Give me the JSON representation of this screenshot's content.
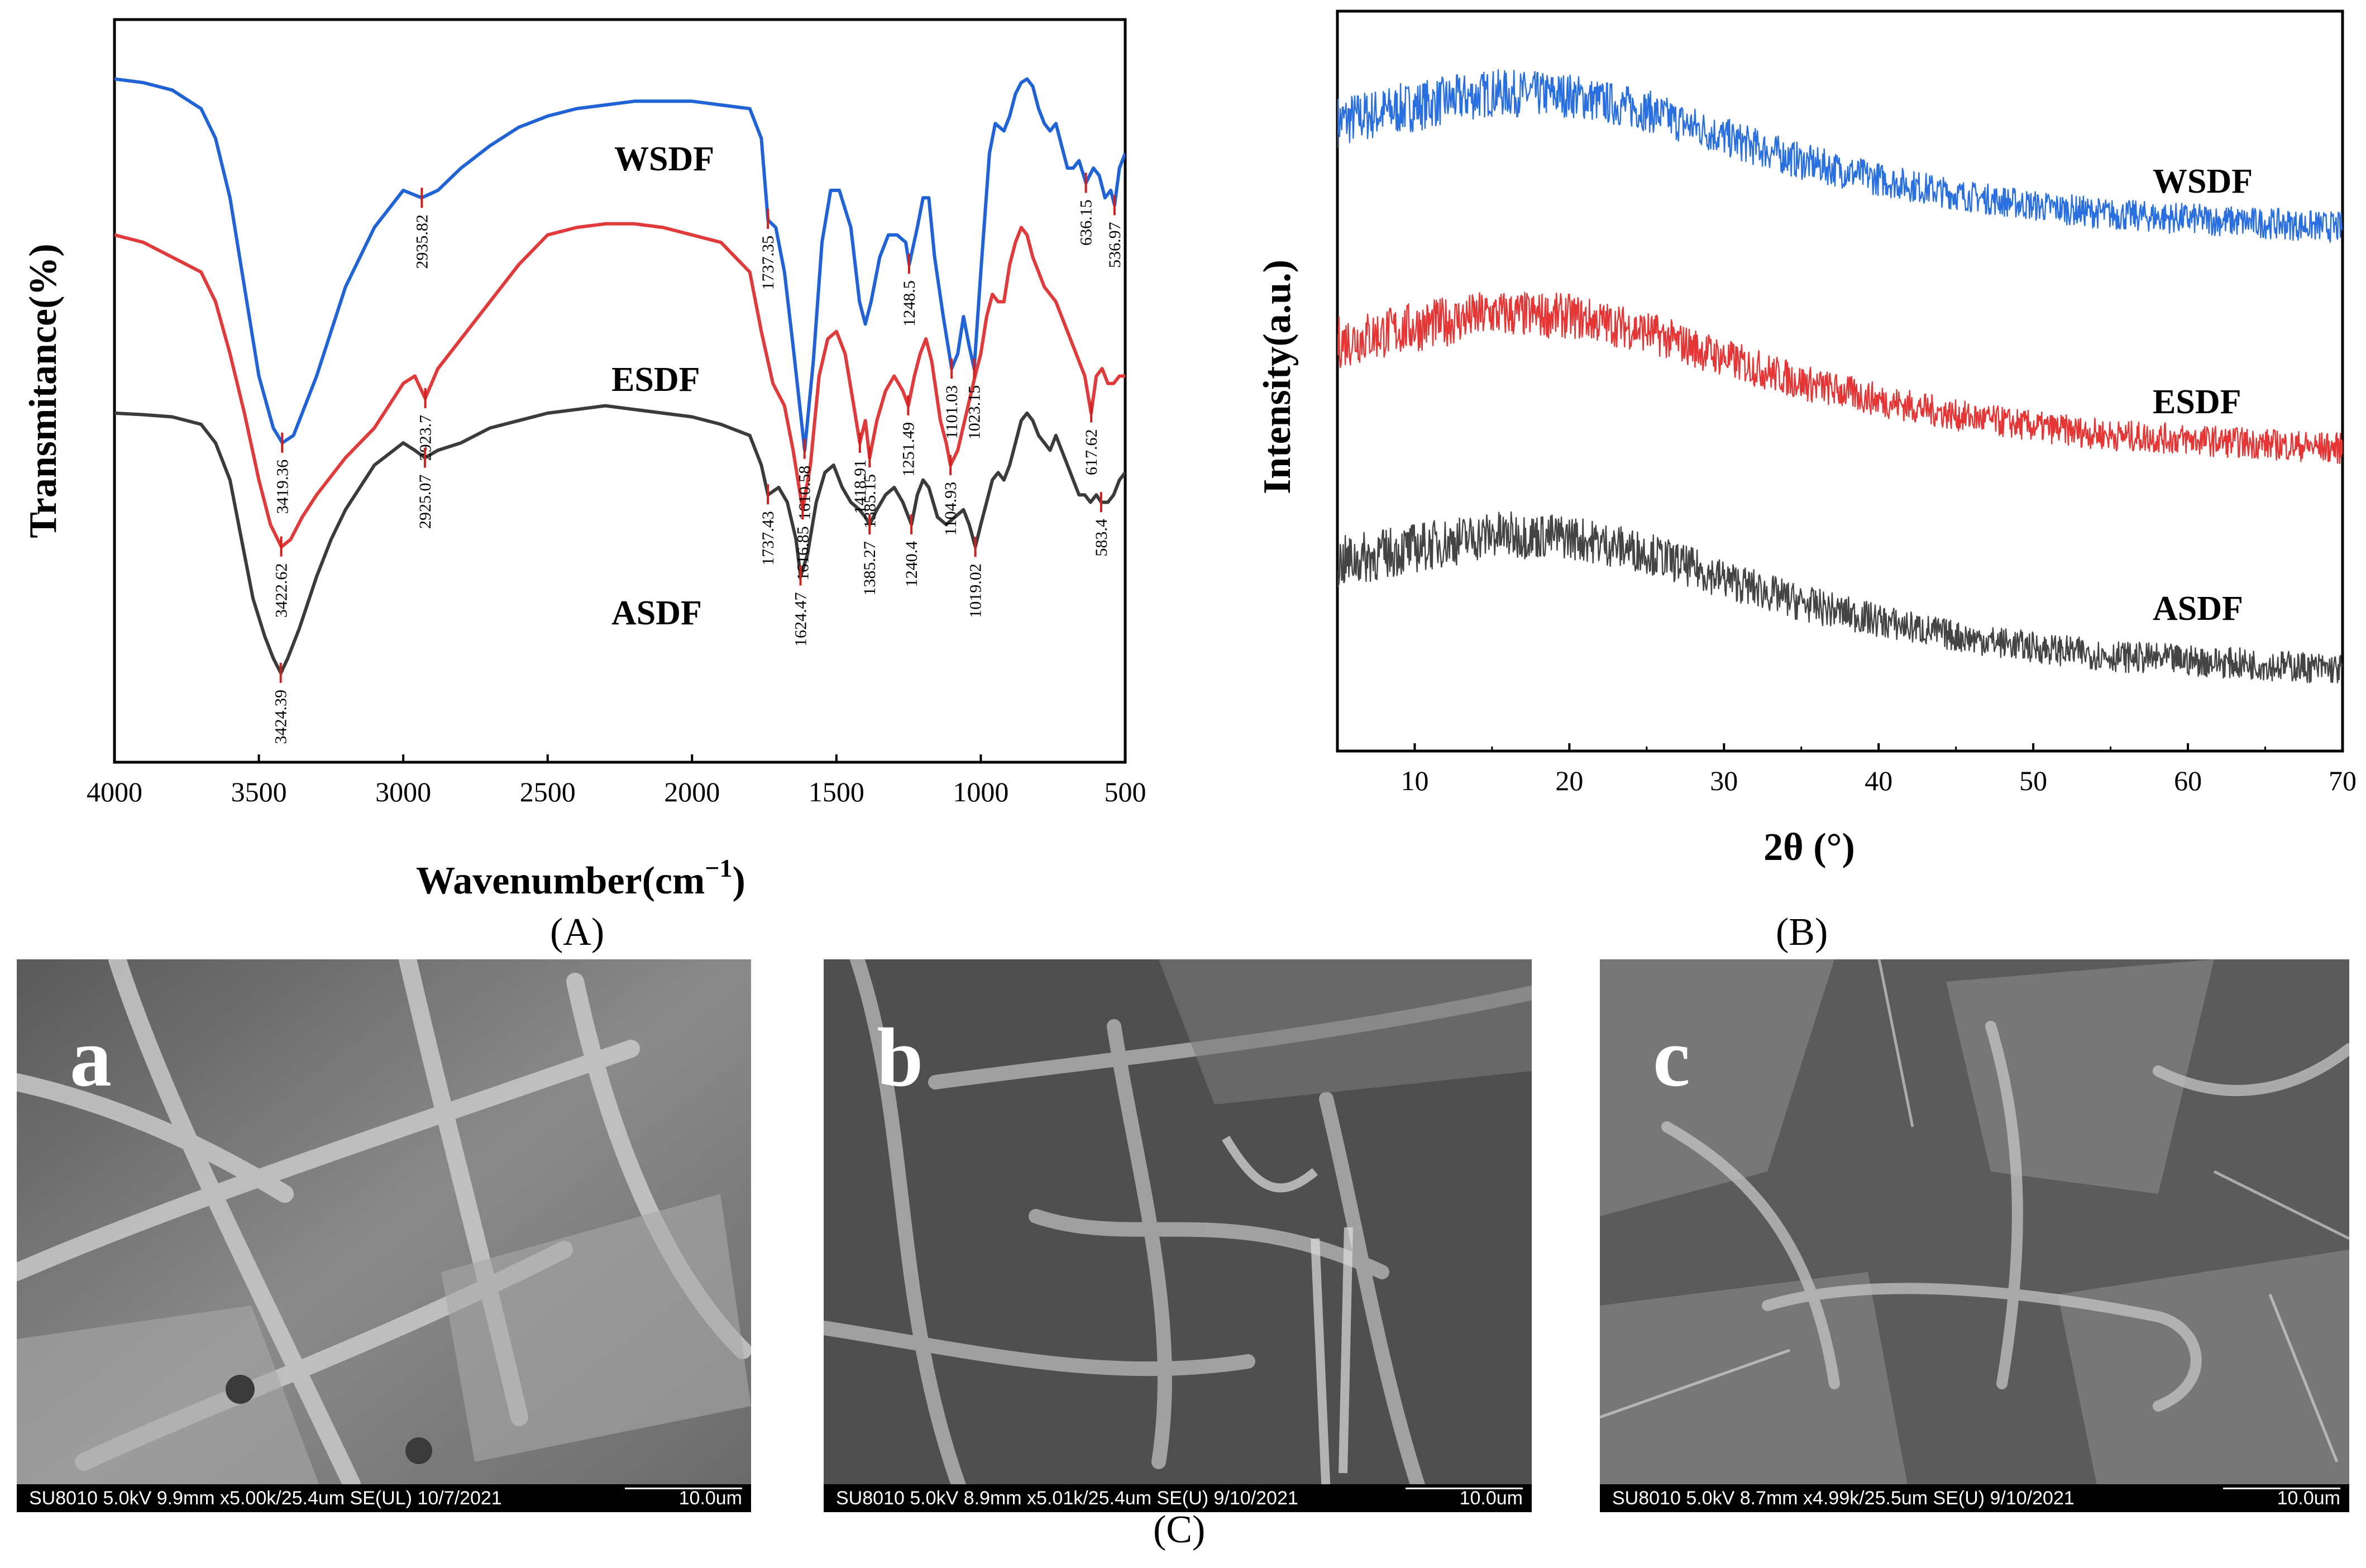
{
  "chart_data": [
    {
      "type": "line",
      "panel": "A",
      "title": "",
      "xlabel": "Wavenumber(cm",
      "xlabel_sup": "−1",
      "xlabel_close": ")",
      "ylabel": "Transmitance(%)",
      "xlim": [
        4000,
        500
      ],
      "x_ticks": [
        "4000",
        "3500",
        "3000",
        "2500",
        "2000",
        "1500",
        "1000",
        "500"
      ],
      "series": [
        {
          "name": "WSDF",
          "color": "#1f63d6",
          "x": [
            4000,
            3900,
            3800,
            3700,
            3650,
            3600,
            3550,
            3500,
            3450,
            3419,
            3380,
            3300,
            3200,
            3100,
            3000,
            2936,
            2880,
            2800,
            2700,
            2600,
            2500,
            2400,
            2300,
            2200,
            2100,
            2000,
            1900,
            1800,
            1760,
            1737,
            1710,
            1680,
            1650,
            1610,
            1580,
            1550,
            1520,
            1490,
            1450,
            1420,
            1400,
            1380,
            1350,
            1320,
            1290,
            1260,
            1248,
            1220,
            1200,
            1180,
            1160,
            1130,
            1101,
            1080,
            1060,
            1040,
            1023,
            1000,
            970,
            950,
            920,
            900,
            880,
            860,
            840,
            820,
            800,
            780,
            760,
            740,
            720,
            700,
            680,
            660,
            636,
            610,
            590,
            570,
            550,
            537,
            520,
            500
          ],
          "y": [
            92,
            91.5,
            90.5,
            88,
            84,
            76,
            64,
            52,
            45,
            43,
            44,
            52,
            64,
            72,
            77,
            76,
            77,
            80,
            83,
            85.5,
            87,
            88,
            88.5,
            89,
            89,
            89,
            88.5,
            88,
            84,
            73,
            72,
            66,
            56,
            42,
            54,
            70,
            77,
            77,
            72,
            62,
            59,
            62,
            68,
            71,
            71,
            70,
            67,
            72,
            76,
            76,
            68,
            60,
            53,
            55,
            60,
            56,
            53,
            66,
            82,
            86,
            85,
            87,
            90,
            91.5,
            92,
            91,
            88,
            86,
            85,
            86,
            83,
            80,
            80,
            81,
            78,
            80,
            79,
            76,
            77,
            75,
            80,
            82
          ]
        },
        {
          "name": "ESDF",
          "color": "#e03a3a",
          "x": [
            4000,
            3900,
            3800,
            3700,
            3650,
            3600,
            3550,
            3500,
            3460,
            3422,
            3390,
            3350,
            3300,
            3200,
            3100,
            3000,
            2960,
            2924,
            2880,
            2800,
            2700,
            2600,
            2500,
            2400,
            2300,
            2200,
            2100,
            2000,
            1950,
            1900,
            1850,
            1800,
            1760,
            1720,
            1680,
            1650,
            1617,
            1590,
            1560,
            1530,
            1500,
            1470,
            1440,
            1419,
            1400,
            1385,
            1360,
            1330,
            1300,
            1270,
            1251,
            1230,
            1210,
            1190,
            1170,
            1140,
            1120,
            1105,
            1080,
            1050,
            1020,
            1000,
            980,
            960,
            940,
            920,
            900,
            880,
            860,
            840,
            820,
            800,
            780,
            760,
            740,
            720,
            700,
            680,
            660,
            640,
            618,
            600,
            580,
            560,
            540,
            520,
            500
          ],
          "y": [
            71,
            70,
            68,
            66,
            62,
            55,
            47,
            38,
            32,
            29,
            30,
            33,
            36,
            41,
            45,
            51,
            52,
            49,
            53,
            57,
            62,
            67,
            71,
            72,
            72.5,
            72.5,
            72,
            71,
            70.5,
            70,
            68,
            66,
            58,
            51,
            48,
            42,
            34,
            40,
            52,
            57,
            58,
            55,
            48,
            43,
            46,
            41,
            46,
            50,
            52,
            50,
            48,
            52,
            55,
            57,
            54,
            46,
            43,
            40,
            42,
            47,
            52,
            55,
            60,
            63,
            62,
            62,
            67,
            70,
            72,
            71,
            68,
            66,
            64,
            63,
            62,
            60,
            58,
            56,
            54,
            52,
            47,
            52,
            53,
            51,
            51,
            52,
            52
          ]
        },
        {
          "name": "ASDF",
          "color": "#3b3b3b",
          "x": [
            4000,
            3900,
            3800,
            3700,
            3650,
            3600,
            3560,
            3520,
            3480,
            3450,
            3424,
            3400,
            3360,
            3300,
            3250,
            3200,
            3100,
            3000,
            2960,
            2925,
            2880,
            2800,
            2700,
            2600,
            2500,
            2400,
            2300,
            2200,
            2100,
            2000,
            1900,
            1800,
            1760,
            1737,
            1700,
            1670,
            1640,
            1624,
            1600,
            1570,
            1540,
            1510,
            1480,
            1450,
            1420,
            1400,
            1385,
            1360,
            1330,
            1300,
            1270,
            1240,
            1220,
            1200,
            1180,
            1150,
            1120,
            1090,
            1060,
            1040,
            1019,
            1000,
            980,
            960,
            940,
            920,
            900,
            880,
            860,
            840,
            820,
            800,
            780,
            760,
            740,
            720,
            700,
            680,
            660,
            640,
            620,
            600,
            583,
            560,
            540,
            520,
            500
          ],
          "y": [
            47,
            46.8,
            46.5,
            45.5,
            43,
            38,
            30,
            22,
            17,
            14,
            12,
            14,
            18,
            25,
            30,
            34,
            40,
            43,
            42,
            41,
            42,
            43,
            45,
            46,
            47,
            47.5,
            48,
            47.5,
            47,
            46.5,
            45.5,
            44,
            40,
            36,
            37,
            35,
            30,
            25,
            28,
            35,
            39,
            40,
            37,
            35,
            34,
            33,
            32,
            34,
            36,
            37,
            35,
            32,
            36,
            38,
            37,
            33,
            32,
            33,
            34,
            32,
            29,
            32,
            35,
            38,
            39,
            38,
            40,
            43,
            46,
            47,
            46,
            44,
            43,
            42,
            44,
            42,
            40,
            38,
            36,
            36,
            35,
            36,
            35,
            35,
            36,
            38,
            39
          ]
        }
      ],
      "series_labels": [
        "WSDF",
        "ESDF",
        "ASDF"
      ],
      "annotations": [
        {
          "series": "WSDF",
          "x": 3419.36,
          "text": "3419.36",
          "side": "below"
        },
        {
          "series": "WSDF",
          "x": 2935.82,
          "text": "2935.82",
          "side": "below"
        },
        {
          "series": "WSDF",
          "x": 1737.35,
          "text": "1737.35",
          "side": "below"
        },
        {
          "series": "WSDF",
          "x": 1610.58,
          "text": "1610.58",
          "side": "below"
        },
        {
          "series": "WSDF",
          "x": 1248.5,
          "text": "1248.5",
          "side": "below"
        },
        {
          "series": "WSDF",
          "x": 1101.03,
          "text": "1101.03",
          "side": "below"
        },
        {
          "series": "WSDF",
          "x": 1023.15,
          "text": "1023.15",
          "side": "below"
        },
        {
          "series": "WSDF",
          "x": 636.15,
          "text": "636.15",
          "side": "below"
        },
        {
          "series": "WSDF",
          "x": 536.97,
          "text": "536.97",
          "side": "below"
        },
        {
          "series": "ESDF",
          "x": 3422.62,
          "text": "3422.62",
          "side": "below"
        },
        {
          "series": "ESDF",
          "x": 2923.7,
          "text": "2923.7",
          "side": "below"
        },
        {
          "series": "ESDF",
          "x": 1616.85,
          "text": "1616.85",
          "side": "below"
        },
        {
          "series": "ESDF",
          "x": 1418.91,
          "text": "1418.91",
          "side": "below"
        },
        {
          "series": "ESDF",
          "x": 1385.15,
          "text": "1385.15",
          "side": "below"
        },
        {
          "series": "ESDF",
          "x": 1251.49,
          "text": "1251.49",
          "side": "below"
        },
        {
          "series": "ESDF",
          "x": 1104.93,
          "text": "1104.93",
          "side": "below"
        },
        {
          "series": "ESDF",
          "x": 617.62,
          "text": "617.62",
          "side": "below"
        },
        {
          "series": "ASDF",
          "x": 3424.39,
          "text": "3424.39",
          "side": "below"
        },
        {
          "series": "ASDF",
          "x": 2925.07,
          "text": "2925.07",
          "side": "below"
        },
        {
          "series": "ASDF",
          "x": 1737.43,
          "text": "1737.43",
          "side": "below"
        },
        {
          "series": "ASDF",
          "x": 1624.47,
          "text": "1624.47",
          "side": "below"
        },
        {
          "series": "ASDF",
          "x": 1385.27,
          "text": "1385.27",
          "side": "below"
        },
        {
          "series": "ASDF",
          "x": 1240.4,
          "text": "1240.4",
          "side": "below"
        },
        {
          "series": "ASDF",
          "x": 1019.02,
          "text": "1019.02",
          "side": "below"
        },
        {
          "series": "ASDF",
          "x": 583.4,
          "text": "583.4",
          "side": "below"
        }
      ]
    },
    {
      "type": "line",
      "panel": "B",
      "title": "",
      "xlabel": "2θ (°)",
      "ylabel": "Intensity(a.u.)",
      "xlim": [
        5,
        70
      ],
      "x_ticks": [
        "10",
        "20",
        "30",
        "40",
        "50",
        "60",
        "70"
      ],
      "series": [
        {
          "name": "WSDF",
          "color": "#2a6fe0",
          "x": [
            5,
            10,
            15,
            20,
            25,
            30,
            35,
            40,
            45,
            50,
            55,
            60,
            65,
            70
          ],
          "y": [
            3.05,
            3.12,
            3.18,
            3.17,
            3.1,
            2.98,
            2.87,
            2.79,
            2.72,
            2.67,
            2.63,
            2.61,
            2.59,
            2.57
          ]
        },
        {
          "name": "ESDF",
          "color": "#e53535",
          "x": [
            5,
            10,
            15,
            20,
            25,
            30,
            35,
            40,
            45,
            50,
            55,
            60,
            65,
            70
          ],
          "y": [
            2.05,
            2.12,
            2.18,
            2.17,
            2.1,
            1.98,
            1.87,
            1.79,
            1.72,
            1.67,
            1.63,
            1.61,
            1.59,
            1.57
          ]
        },
        {
          "name": "ASDF",
          "color": "#444444",
          "x": [
            5,
            10,
            15,
            20,
            25,
            30,
            35,
            40,
            45,
            50,
            55,
            60,
            65,
            70
          ],
          "y": [
            1.05,
            1.12,
            1.18,
            1.17,
            1.1,
            0.98,
            0.87,
            0.79,
            0.72,
            0.67,
            0.63,
            0.61,
            0.59,
            0.57
          ]
        }
      ],
      "series_labels": [
        "WSDF",
        "ESDF",
        "ASDF"
      ]
    }
  ],
  "panels": {
    "A": "(A)",
    "B": "(B)",
    "C": "(C)"
  },
  "sem": [
    {
      "letter": "a",
      "info": "SU8010 5.0kV 9.9mm x5.00k/25.4um SE(UL) 10/7/2021",
      "scale": "10.0um"
    },
    {
      "letter": "b",
      "info": "SU8010 5.0kV 8.9mm x5.01k/25.4um SE(U) 9/10/2021",
      "scale": "10.0um"
    },
    {
      "letter": "c",
      "info": "SU8010 5.0kV 8.7mm x4.99k/25.5um SE(U) 9/10/2021",
      "scale": "10.0um"
    }
  ]
}
